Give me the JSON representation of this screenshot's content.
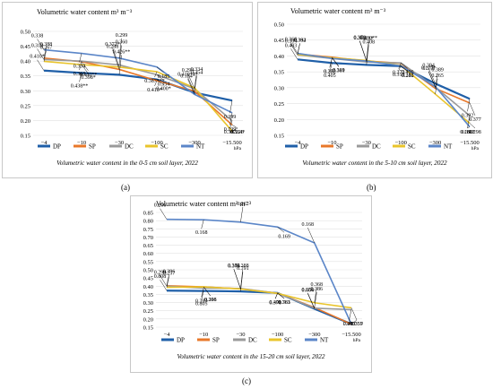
{
  "legend_colors": {
    "DP": "#1f5fa8",
    "SP": "#e8782a",
    "DC": "#9a9a9a",
    "SC": "#e9c42b",
    "NT": "#5b86c8"
  },
  "chart_data": [
    {
      "type": "line",
      "panel_label": "(a)",
      "title": "Volumetric water content m³ m⁻³",
      "caption": "Volumetric water content in the 0-5 cm soil layer, 2022",
      "x": [
        "−4",
        "−10",
        "−30",
        "−100",
        "−300",
        "−15.500"
      ],
      "x_unit": "hPa",
      "ylim": [
        0.15,
        0.5
      ],
      "yticks": [
        "0.50",
        "0.45",
        "0.40",
        "0.35",
        "0.30",
        "0.25",
        "0.20",
        "0.15"
      ],
      "series": [
        {
          "name": "DP",
          "values": [
            0.368,
            0.36,
            0.354,
            0.338,
            0.294,
            0.267
          ]
        },
        {
          "name": "SP",
          "values": [
            0.41,
            0.398,
            0.372,
            0.334,
            0.299,
            0.185
          ]
        },
        {
          "name": "DC",
          "values": [
            0.405,
            0.4,
            0.387,
            0.354,
            0.307,
            0.199
          ]
        },
        {
          "name": "SC",
          "values": [
            0.399,
            0.388,
            0.38,
            0.364,
            0.31,
            0.164
          ]
        },
        {
          "name": "NT",
          "values": [
            0.438,
            0.426,
            0.41,
            0.38,
            0.288,
            0.226
          ]
        }
      ],
      "data_labels": [
        "0.410*",
        "0.438**",
        "0.426**",
        "0.400*",
        "0.410***",
        "0.399",
        "0.388",
        "0.380**",
        "0.288",
        "0.410*",
        "0.354",
        "0.364*",
        "0.310",
        "0.368",
        "0.360",
        "0.354",
        "0.294",
        "0.307",
        "0.267",
        "0.398*",
        "0.372*",
        "0.387***",
        "0.334",
        "0.226",
        "0.338",
        "0.334",
        "0.299",
        "0.185",
        "0.164*",
        "0.199"
      ],
      "legend": [
        "DP",
        "SP",
        "DC",
        "SC",
        "NT"
      ]
    },
    {
      "type": "line",
      "panel_label": "(b)",
      "title": "Volumetric water content m³ m⁻³",
      "caption": "Volumetric water content in the 5-10 cm soil layer, 2022",
      "x": [
        "−4",
        "−10",
        "−30",
        "−100",
        "−300",
        "−15.500"
      ],
      "x_unit": "hPa",
      "ylim": [
        0.15,
        0.5
      ],
      "yticks": [
        "0.50",
        "0.45",
        "0.40",
        "0.35",
        "0.30",
        "0.25",
        "0.20",
        "0.15"
      ],
      "series": [
        {
          "name": "DP",
          "values": [
            0.389,
            0.378,
            0.372,
            0.368,
            0.313,
            0.265
          ]
        },
        {
          "name": "SP",
          "values": [
            0.406,
            0.396,
            0.384,
            0.377,
            0.298,
            0.252
          ]
        },
        {
          "name": "DC",
          "values": [
            0.403,
            0.392,
            0.381,
            0.378,
            0.302,
            0.212
          ]
        },
        {
          "name": "SC",
          "values": [
            0.405,
            0.394,
            0.386,
            0.37,
            0.28,
            0.188
          ]
        },
        {
          "name": "NT",
          "values": [
            0.408,
            0.392,
            0.384,
            0.369,
            0.304,
            0.177
          ]
        }
      ],
      "data_labels": [
        "0.403",
        "0.405",
        "0.408",
        "0.386",
        "0.394",
        "0.392",
        "0.384",
        "0.369",
        "0.389",
        "0.372",
        "0.389",
        "0.377",
        "0.304",
        "0.302",
        "0.37",
        "0.406",
        "0.378",
        "0.396",
        "0.392",
        "0.381",
        "0.378",
        "0.313",
        "0.265",
        "0.298",
        "0.368",
        "0.252",
        "0.280**",
        "0.212",
        "0.177*",
        "0.188*"
      ],
      "legend": [
        "DP",
        "SP",
        "DC",
        "SC",
        "NT"
      ]
    },
    {
      "type": "line",
      "panel_label": "(c)",
      "title": "Volumetric water content m³ m⁻³",
      "caption": "Volumetric water content in the 15-20 cm soil layer, 2022",
      "x": [
        "−4",
        "−10",
        "−30",
        "−100",
        "−300",
        "−15.500"
      ],
      "x_unit": "hPa",
      "ylim": [
        0.15,
        0.85
      ],
      "yticks": [
        "0.85",
        "0.80",
        "0.75",
        "0.70",
        "0.65",
        "0.60",
        "0.55",
        "0.50",
        "0.45",
        "0.40",
        "0.35",
        "0.30",
        "0.25",
        "0.20",
        "0.15"
      ],
      "series": [
        {
          "name": "DP",
          "values": [
            0.373,
            0.371,
            0.368,
            0.359,
            0.262,
            0.169
          ]
        },
        {
          "name": "SP",
          "values": [
            0.403,
            0.396,
            0.384,
            0.357,
            0.27,
            0.168
          ]
        },
        {
          "name": "DC",
          "values": [
            0.4,
            0.388,
            0.386,
            0.357,
            0.266,
            0.257
          ]
        },
        {
          "name": "SC",
          "values": [
            0.393,
            0.396,
            0.383,
            0.356,
            0.299,
            0.268
          ]
        },
        {
          "name": "NT",
          "values": [
            0.808,
            0.805,
            0.791,
            0.761,
            0.664,
            0.168
          ]
        }
      ],
      "data_labels": [
        "0.808",
        "0.805",
        "0.791",
        "0.761",
        "0.664",
        "0.403",
        "0.396",
        "0.396",
        "0.384",
        "0.400",
        "0.386",
        "0.357",
        "0.299",
        "0.393",
        "0.388",
        "0.383",
        "0.356",
        "0.270",
        "0.257",
        "0.268",
        "0.373",
        "0.371",
        "0.368",
        "0.359",
        "0.266",
        "0.168",
        "0.262",
        "0.169",
        "0.168"
      ],
      "legend": [
        "DP",
        "SP",
        "DC",
        "SC",
        "NT"
      ]
    }
  ]
}
